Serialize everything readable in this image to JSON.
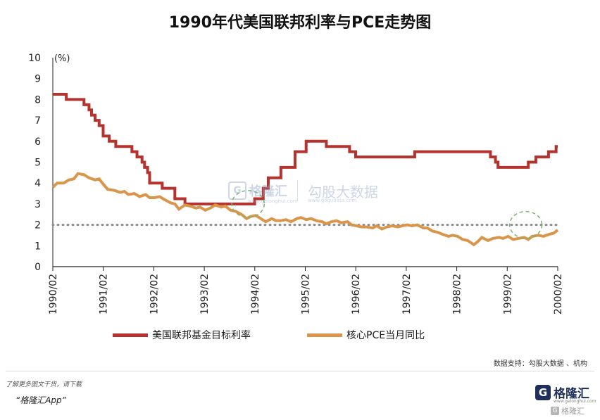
{
  "page": {
    "title": "1990年代美国联邦利率与PCE走势图",
    "source": "数据支持：勾股大数据 、机构",
    "footer_note": "了解更多图文干货，请下载",
    "footer_app": "“格隆汇App”",
    "brand": {
      "logo_letter": "G",
      "name": "格隆汇",
      "url": "www.gelonghui.com"
    },
    "watermark": {
      "logo_letter": "G",
      "name": "格隆汇",
      "url": "www.gelonghui.com",
      "name2": "勾股大数据",
      "url2": "www.gogudata.com"
    }
  },
  "chart_data": {
    "type": "line",
    "title": "1990年代美国联邦利率与PCE走势图",
    "ylabel": "(%)",
    "xlabel": "",
    "ylim": [
      0,
      10
    ],
    "yticks": [
      0,
      1,
      2,
      3,
      4,
      5,
      6,
      7,
      8,
      9,
      10
    ],
    "xlim": [
      1990.083,
      2000.083
    ],
    "xticks": [
      "1990/02",
      "1991/02",
      "1992/02",
      "1993/02",
      "1994/02",
      "1995/02",
      "1996/02",
      "1997/02",
      "1998/02",
      "1999/02",
      "2000/02"
    ],
    "reference_line": {
      "y": 2.0,
      "style": "dotted",
      "color": "#8c8c8c"
    },
    "highlight_circles": [
      {
        "x": 1993.95,
        "y": 3.0,
        "color": "#7db36b"
      },
      {
        "x": 1999.45,
        "y": 2.0,
        "color": "#7db36b"
      }
    ],
    "legend_position": "bottom",
    "grid": false,
    "series": [
      {
        "name": "美国联邦基金目标利率",
        "color": "#b5332e",
        "step": true,
        "points": [
          [
            1990.083,
            8.25
          ],
          [
            1990.35,
            8.0
          ],
          [
            1990.7,
            7.75
          ],
          [
            1990.8,
            7.5
          ],
          [
            1990.85,
            7.25
          ],
          [
            1990.92,
            7.0
          ],
          [
            1991.0,
            6.75
          ],
          [
            1991.08,
            6.25
          ],
          [
            1991.2,
            6.0
          ],
          [
            1991.33,
            5.75
          ],
          [
            1991.65,
            5.5
          ],
          [
            1991.75,
            5.25
          ],
          [
            1991.85,
            5.0
          ],
          [
            1991.9,
            4.75
          ],
          [
            1991.96,
            4.5
          ],
          [
            1992.0,
            4.0
          ],
          [
            1992.25,
            3.75
          ],
          [
            1992.5,
            3.25
          ],
          [
            1992.7,
            3.0
          ],
          [
            1994.08,
            3.25
          ],
          [
            1994.25,
            3.75
          ],
          [
            1994.35,
            4.25
          ],
          [
            1994.6,
            4.75
          ],
          [
            1994.88,
            5.5
          ],
          [
            1995.1,
            6.0
          ],
          [
            1995.5,
            5.75
          ],
          [
            1995.96,
            5.5
          ],
          [
            1996.08,
            5.25
          ],
          [
            1997.25,
            5.5
          ],
          [
            1998.75,
            5.25
          ],
          [
            1998.85,
            5.0
          ],
          [
            1998.9,
            4.75
          ],
          [
            1999.5,
            5.0
          ],
          [
            1999.65,
            5.25
          ],
          [
            1999.9,
            5.5
          ],
          [
            2000.05,
            5.75
          ],
          [
            2000.083,
            5.75
          ]
        ]
      },
      {
        "name": "核心PCE当月同比",
        "color": "#d9964a",
        "step": false,
        "points": [
          [
            1990.083,
            3.8
          ],
          [
            1990.17,
            4.0
          ],
          [
            1990.3,
            4.0
          ],
          [
            1990.4,
            4.15
          ],
          [
            1990.5,
            4.2
          ],
          [
            1990.58,
            4.45
          ],
          [
            1990.7,
            4.4
          ],
          [
            1990.8,
            4.25
          ],
          [
            1990.92,
            4.15
          ],
          [
            1991.0,
            4.2
          ],
          [
            1991.08,
            3.95
          ],
          [
            1991.17,
            3.7
          ],
          [
            1991.3,
            3.65
          ],
          [
            1991.42,
            3.55
          ],
          [
            1991.5,
            3.6
          ],
          [
            1991.58,
            3.45
          ],
          [
            1991.7,
            3.5
          ],
          [
            1991.8,
            3.35
          ],
          [
            1991.92,
            3.45
          ],
          [
            1992.0,
            3.3
          ],
          [
            1992.1,
            3.3
          ],
          [
            1992.2,
            3.35
          ],
          [
            1992.3,
            3.2
          ],
          [
            1992.42,
            3.05
          ],
          [
            1992.5,
            3.0
          ],
          [
            1992.58,
            2.75
          ],
          [
            1992.7,
            2.95
          ],
          [
            1992.8,
            2.9
          ],
          [
            1992.92,
            2.8
          ],
          [
            1993.0,
            2.85
          ],
          [
            1993.1,
            2.7
          ],
          [
            1993.2,
            2.8
          ],
          [
            1993.3,
            2.95
          ],
          [
            1993.42,
            2.85
          ],
          [
            1993.5,
            2.9
          ],
          [
            1993.6,
            2.7
          ],
          [
            1993.7,
            2.65
          ],
          [
            1993.82,
            2.5
          ],
          [
            1993.92,
            2.3
          ],
          [
            1994.0,
            2.4
          ],
          [
            1994.1,
            2.45
          ],
          [
            1994.2,
            2.3
          ],
          [
            1994.3,
            2.15
          ],
          [
            1994.42,
            2.3
          ],
          [
            1994.5,
            2.2
          ],
          [
            1994.6,
            2.2
          ],
          [
            1994.7,
            2.25
          ],
          [
            1994.8,
            2.15
          ],
          [
            1994.92,
            2.3
          ],
          [
            1995.0,
            2.35
          ],
          [
            1995.1,
            2.25
          ],
          [
            1995.2,
            2.3
          ],
          [
            1995.3,
            2.2
          ],
          [
            1995.42,
            2.15
          ],
          [
            1995.5,
            2.05
          ],
          [
            1995.6,
            2.15
          ],
          [
            1995.7,
            2.2
          ],
          [
            1995.8,
            2.1
          ],
          [
            1995.92,
            2.15
          ],
          [
            1996.0,
            2.0
          ],
          [
            1996.1,
            1.95
          ],
          [
            1996.2,
            1.9
          ],
          [
            1996.3,
            1.9
          ],
          [
            1996.42,
            1.85
          ],
          [
            1996.5,
            1.95
          ],
          [
            1996.6,
            1.8
          ],
          [
            1996.7,
            1.9
          ],
          [
            1996.8,
            1.95
          ],
          [
            1996.92,
            1.9
          ],
          [
            1997.0,
            1.95
          ],
          [
            1997.1,
            2.0
          ],
          [
            1997.2,
            1.95
          ],
          [
            1997.3,
            2.0
          ],
          [
            1997.42,
            1.85
          ],
          [
            1997.5,
            1.85
          ],
          [
            1997.6,
            1.7
          ],
          [
            1997.7,
            1.65
          ],
          [
            1997.8,
            1.55
          ],
          [
            1997.92,
            1.45
          ],
          [
            1998.0,
            1.5
          ],
          [
            1998.1,
            1.45
          ],
          [
            1998.2,
            1.3
          ],
          [
            1998.3,
            1.25
          ],
          [
            1998.42,
            1.05
          ],
          [
            1998.5,
            1.2
          ],
          [
            1998.58,
            1.4
          ],
          [
            1998.7,
            1.25
          ],
          [
            1998.8,
            1.35
          ],
          [
            1998.92,
            1.4
          ],
          [
            1999.0,
            1.35
          ],
          [
            1999.1,
            1.45
          ],
          [
            1999.2,
            1.3
          ],
          [
            1999.3,
            1.35
          ],
          [
            1999.42,
            1.4
          ],
          [
            1999.5,
            1.3
          ],
          [
            1999.58,
            1.45
          ],
          [
            1999.7,
            1.5
          ],
          [
            1999.8,
            1.45
          ],
          [
            1999.92,
            1.55
          ],
          [
            2000.0,
            1.6
          ],
          [
            2000.083,
            1.75
          ]
        ]
      }
    ]
  }
}
